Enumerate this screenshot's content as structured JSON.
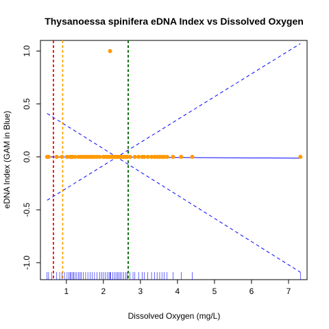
{
  "chart_data": {
    "type": "scatter",
    "title": "Thysanoessa spinifera eDNA Index vs Dissolved Oxygen",
    "xlabel": "Dissolved Oxygen (mg/L)",
    "ylabel": "eDNA Index (GAM in Blue)",
    "xlim": [
      0.3,
      7.5
    ],
    "ylim": [
      -1.16,
      1.1
    ],
    "x_ticks": [
      1,
      2,
      3,
      4,
      5,
      6,
      7
    ],
    "y_ticks": [
      -1.0,
      -0.5,
      0.0,
      0.5,
      1.0
    ],
    "y_tick_labels": [
      "-1.0",
      "-0.5",
      "0.0",
      "0.5",
      "1.0"
    ],
    "grid": false,
    "points": {
      "color": "#ff9900",
      "x": [
        0.48,
        0.52,
        0.74,
        0.88,
        1.02,
        1.1,
        1.13,
        1.17,
        1.24,
        1.33,
        1.4,
        1.46,
        1.52,
        1.58,
        1.64,
        1.7,
        1.76,
        1.83,
        1.9,
        2.0,
        2.05,
        2.1,
        2.15,
        2.2,
        2.25,
        2.3,
        2.34,
        2.38,
        2.42,
        2.46,
        2.5,
        2.55,
        2.6,
        2.64,
        2.72,
        2.85,
        2.95,
        3.05,
        3.1,
        3.2,
        3.3,
        3.38,
        3.45,
        3.52,
        3.58,
        3.64,
        3.72,
        3.88,
        4.1,
        4.4,
        7.32,
        2.18
      ],
      "y": [
        0,
        0,
        0,
        0,
        0,
        0,
        0,
        0,
        0,
        0,
        0,
        0,
        0,
        0,
        0,
        0,
        0,
        0,
        0,
        0,
        0,
        0,
        0,
        0,
        0,
        0,
        0,
        0,
        0,
        0,
        0,
        0,
        0,
        0,
        0,
        0,
        0,
        0,
        0,
        0,
        0,
        0,
        0,
        0,
        0,
        0,
        0,
        0,
        0,
        0,
        0,
        1.0
      ]
    },
    "gam_fit": {
      "color": "#0000ff",
      "x": [
        0.48,
        7.32
      ],
      "y": [
        0.0,
        -0.012
      ]
    },
    "gam_ci_upper": {
      "color": "#0000ff",
      "style": "dashed",
      "x": [
        0.48,
        7.32
      ],
      "y": [
        -0.41,
        1.07
      ]
    },
    "gam_ci_lower": {
      "color": "#0000ff",
      "style": "dashed",
      "x": [
        0.48,
        7.32
      ],
      "y": [
        0.41,
        -1.09
      ]
    },
    "vlines": [
      {
        "x": 0.65,
        "color": "#ff0000",
        "style": "dashed"
      },
      {
        "x": 0.9,
        "color": "#ffa500",
        "style": "dashed"
      },
      {
        "x": 2.67,
        "color": "#006400",
        "style": "dashed"
      }
    ],
    "rug": {
      "color": "#0000ff",
      "x": [
        0.48,
        0.52,
        0.6,
        0.74,
        0.82,
        0.88,
        0.95,
        1.02,
        1.07,
        1.1,
        1.13,
        1.17,
        1.2,
        1.24,
        1.28,
        1.33,
        1.37,
        1.4,
        1.46,
        1.52,
        1.58,
        1.64,
        1.7,
        1.76,
        1.83,
        1.9,
        1.95,
        2.0,
        2.05,
        2.1,
        2.15,
        2.18,
        2.2,
        2.25,
        2.3,
        2.34,
        2.38,
        2.42,
        2.46,
        2.5,
        2.55,
        2.6,
        2.64,
        2.72,
        2.8,
        2.85,
        2.95,
        3.05,
        3.1,
        3.2,
        3.3,
        3.38,
        3.45,
        3.52,
        3.58,
        3.64,
        3.72,
        3.88,
        4.1,
        4.4,
        7.32
      ]
    }
  }
}
